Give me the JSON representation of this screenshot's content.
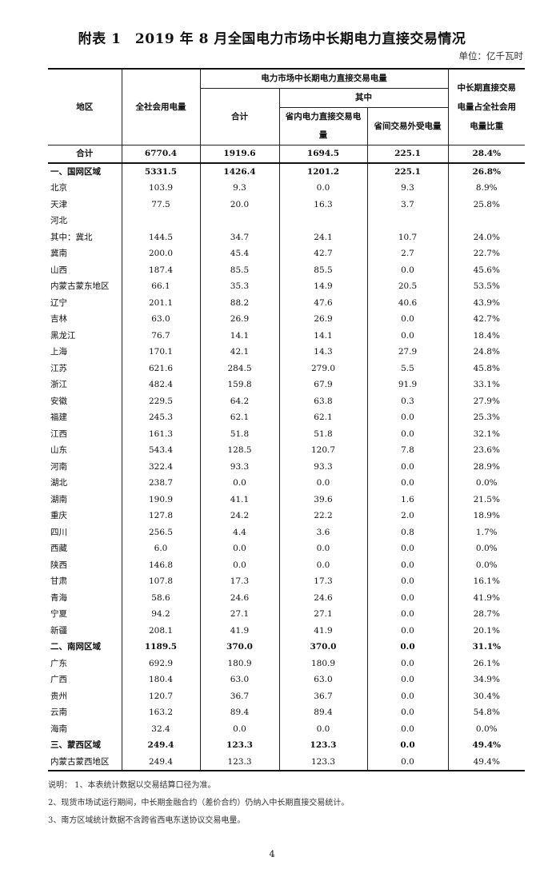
{
  "title": "附表 1　2019 年 8 月全国电力市场中长期电力直接交易情况",
  "unit": "单位：亿千瓦时",
  "headers": {
    "region": "地区",
    "consumption": "全社会用电量",
    "group": "电力市场中长期电力直接交易电量",
    "total": "合计",
    "of_which": "其中",
    "intra": "省内电力直接交易电量",
    "inter": "省间交易外受电量",
    "share": "中长期直接交易电量占全社会用电量比重"
  },
  "rows": [
    {
      "region": "合计",
      "consumption": "6770.4",
      "total": "1919.6",
      "intra": "1694.5",
      "inter": "225.1",
      "share": "28.4%",
      "type": "total"
    },
    {
      "region": "一、国网区域",
      "consumption": "5331.5",
      "total": "1426.4",
      "intra": "1201.2",
      "inter": "225.1",
      "share": "26.8%",
      "type": "bold"
    },
    {
      "region": "北京",
      "consumption": "103.9",
      "total": "9.3",
      "intra": "0.0",
      "inter": "9.3",
      "share": "8.9%"
    },
    {
      "region": "天津",
      "consumption": "77.5",
      "total": "20.0",
      "intra": "16.3",
      "inter": "3.7",
      "share": "25.8%"
    },
    {
      "region": "河北",
      "consumption": "",
      "total": "",
      "intra": "",
      "inter": "",
      "share": ""
    },
    {
      "region": "其中：冀北",
      "consumption": "144.5",
      "total": "34.7",
      "intra": "24.1",
      "inter": "10.7",
      "share": "24.0%"
    },
    {
      "region": "冀南",
      "consumption": "200.0",
      "total": "45.4",
      "intra": "42.7",
      "inter": "2.7",
      "share": "22.7%"
    },
    {
      "region": "山西",
      "consumption": "187.4",
      "total": "85.5",
      "intra": "85.5",
      "inter": "0.0",
      "share": "45.6%"
    },
    {
      "region": "内蒙古蒙东地区",
      "consumption": "66.1",
      "total": "35.3",
      "intra": "14.9",
      "inter": "20.5",
      "share": "53.5%"
    },
    {
      "region": "辽宁",
      "consumption": "201.1",
      "total": "88.2",
      "intra": "47.6",
      "inter": "40.6",
      "share": "43.9%"
    },
    {
      "region": "吉林",
      "consumption": "63.0",
      "total": "26.9",
      "intra": "26.9",
      "inter": "0.0",
      "share": "42.7%"
    },
    {
      "region": "黑龙江",
      "consumption": "76.7",
      "total": "14.1",
      "intra": "14.1",
      "inter": "0.0",
      "share": "18.4%"
    },
    {
      "region": "上海",
      "consumption": "170.1",
      "total": "42.1",
      "intra": "14.3",
      "inter": "27.9",
      "share": "24.8%"
    },
    {
      "region": "江苏",
      "consumption": "621.6",
      "total": "284.5",
      "intra": "279.0",
      "inter": "5.5",
      "share": "45.8%"
    },
    {
      "region": "浙江",
      "consumption": "482.4",
      "total": "159.8",
      "intra": "67.9",
      "inter": "91.9",
      "share": "33.1%"
    },
    {
      "region": "安徽",
      "consumption": "229.5",
      "total": "64.2",
      "intra": "63.8",
      "inter": "0.3",
      "share": "27.9%"
    },
    {
      "region": "福建",
      "consumption": "245.3",
      "total": "62.1",
      "intra": "62.1",
      "inter": "0.0",
      "share": "25.3%"
    },
    {
      "region": "江西",
      "consumption": "161.3",
      "total": "51.8",
      "intra": "51.8",
      "inter": "0.0",
      "share": "32.1%"
    },
    {
      "region": "山东",
      "consumption": "543.4",
      "total": "128.5",
      "intra": "120.7",
      "inter": "7.8",
      "share": "23.6%"
    },
    {
      "region": "河南",
      "consumption": "322.4",
      "total": "93.3",
      "intra": "93.3",
      "inter": "0.0",
      "share": "28.9%"
    },
    {
      "region": "湖北",
      "consumption": "238.7",
      "total": "0.0",
      "intra": "0.0",
      "inter": "0.0",
      "share": "0.0%"
    },
    {
      "region": "湖南",
      "consumption": "190.9",
      "total": "41.1",
      "intra": "39.6",
      "inter": "1.6",
      "share": "21.5%"
    },
    {
      "region": "重庆",
      "consumption": "127.8",
      "total": "24.2",
      "intra": "22.2",
      "inter": "2.0",
      "share": "18.9%"
    },
    {
      "region": "四川",
      "consumption": "256.5",
      "total": "4.4",
      "intra": "3.6",
      "inter": "0.8",
      "share": "1.7%"
    },
    {
      "region": "西藏",
      "consumption": "6.0",
      "total": "0.0",
      "intra": "0.0",
      "inter": "0.0",
      "share": "0.0%"
    },
    {
      "region": "陕西",
      "consumption": "146.8",
      "total": "0.0",
      "intra": "0.0",
      "inter": "0.0",
      "share": "0.0%"
    },
    {
      "region": "甘肃",
      "consumption": "107.8",
      "total": "17.3",
      "intra": "17.3",
      "inter": "0.0",
      "share": "16.1%"
    },
    {
      "region": "青海",
      "consumption": "58.6",
      "total": "24.6",
      "intra": "24.6",
      "inter": "0.0",
      "share": "41.9%"
    },
    {
      "region": "宁夏",
      "consumption": "94.2",
      "total": "27.1",
      "intra": "27.1",
      "inter": "0.0",
      "share": "28.7%"
    },
    {
      "region": "新疆",
      "consumption": "208.1",
      "total": "41.9",
      "intra": "41.9",
      "inter": "0.0",
      "share": "20.1%"
    },
    {
      "region": "二、南网区域",
      "consumption": "1189.5",
      "total": "370.0",
      "intra": "370.0",
      "inter": "0.0",
      "share": "31.1%",
      "type": "bold"
    },
    {
      "region": "广东",
      "consumption": "692.9",
      "total": "180.9",
      "intra": "180.9",
      "inter": "0.0",
      "share": "26.1%"
    },
    {
      "region": "广西",
      "consumption": "180.4",
      "total": "63.0",
      "intra": "63.0",
      "inter": "0.0",
      "share": "34.9%"
    },
    {
      "region": "贵州",
      "consumption": "120.7",
      "total": "36.7",
      "intra": "36.7",
      "inter": "0.0",
      "share": "30.4%"
    },
    {
      "region": "云南",
      "consumption": "163.2",
      "total": "89.4",
      "intra": "89.4",
      "inter": "0.0",
      "share": "54.8%"
    },
    {
      "region": "海南",
      "consumption": "32.4",
      "total": "0.0",
      "intra": "0.0",
      "inter": "0.0",
      "share": "0.0%"
    },
    {
      "region": "三、蒙西区域",
      "consumption": "249.4",
      "total": "123.3",
      "intra": "123.3",
      "inter": "0.0",
      "share": "49.4%",
      "type": "bold"
    },
    {
      "region": "内蒙古蒙西地区",
      "consumption": "249.4",
      "total": "123.3",
      "intra": "123.3",
      "inter": "0.0",
      "share": "49.4%"
    }
  ],
  "notes": [
    "说明：  1、本表统计数据以交易结算口径为准。",
    "2、现货市场试运行期间，中长期金融合约（差价合约）仍纳入中长期直接交易统计。",
    "3、南方区域统计数据不含跨省西电东送协议交易电量。"
  ],
  "page_number": "4"
}
